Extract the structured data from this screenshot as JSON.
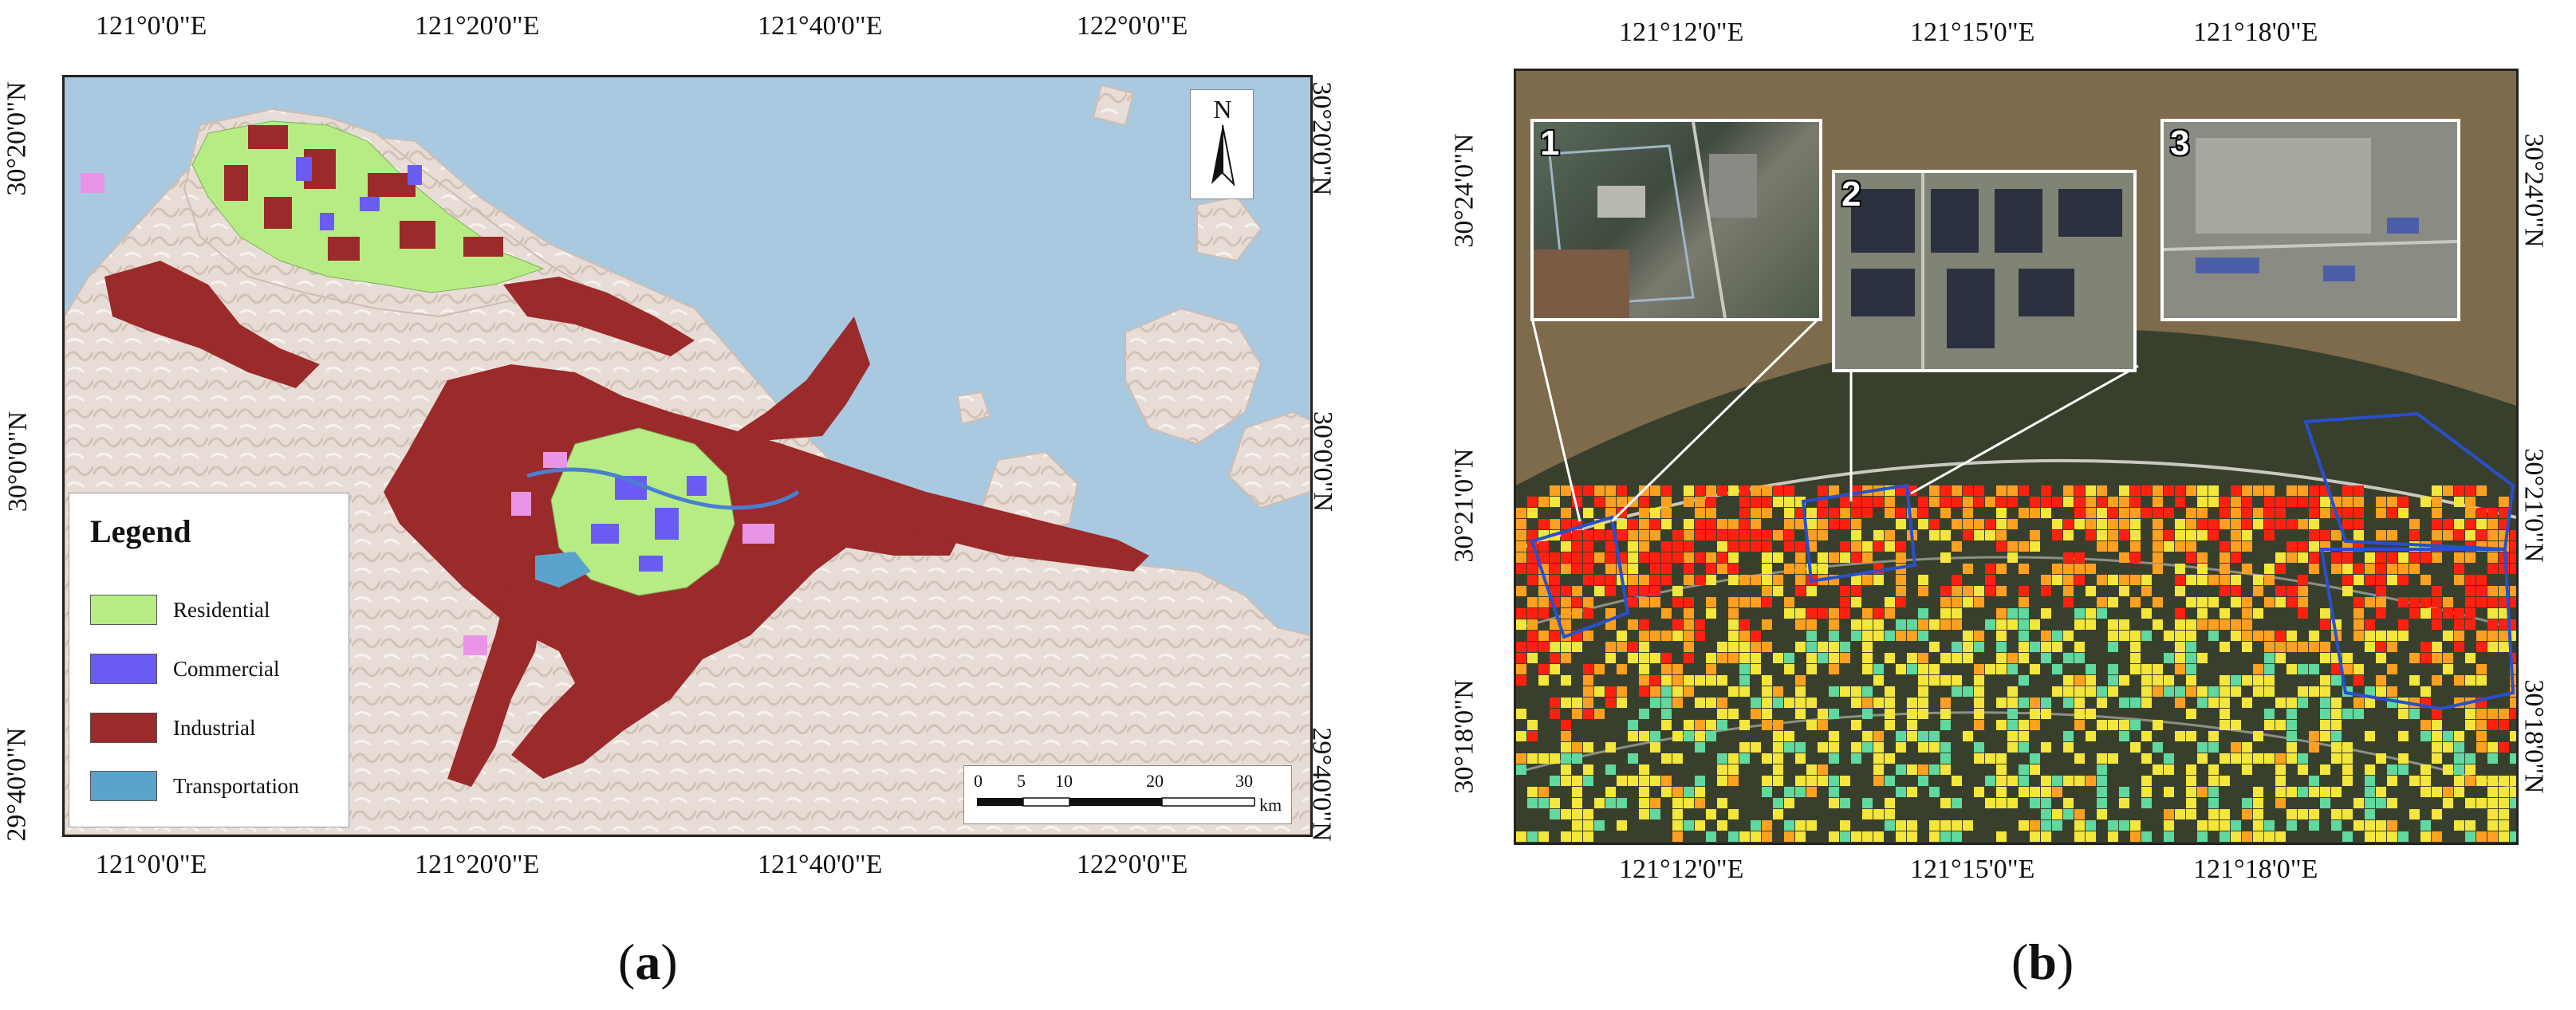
{
  "panel_a": {
    "caption": "(a)",
    "caption_letter": "a",
    "top_lon_labels": [
      "121°0'0\"E",
      "121°20'0\"E",
      "121°40'0\"E",
      "122°0'0\"E"
    ],
    "bottom_lon_labels": [
      "121°0'0\"E",
      "121°20'0\"E",
      "121°40'0\"E",
      "122°0'0\"E"
    ],
    "left_lat_labels": [
      "30°20'0\"N",
      "30°0'0\"N",
      "29°40'0\"N"
    ],
    "right_lat_labels": [
      "30°20'0\"N",
      "30°0'0\"N",
      "29°40'0\"N"
    ],
    "legend": {
      "title": "Legend",
      "items": [
        {
          "label": "Residential",
          "color": "#b7ec84"
        },
        {
          "label": "Commercial",
          "color": "#6a5cf2"
        },
        {
          "label": "Industrial",
          "color": "#9b2a2a"
        },
        {
          "label": "Transportation",
          "color": "#5aa4cc"
        }
      ]
    },
    "north_label": "N",
    "scale": {
      "ticks": [
        "0",
        "5",
        "10",
        "20",
        "30"
      ],
      "unit": "km"
    },
    "colors": {
      "sea": "#a8c8e0",
      "land": "#e7dcd5"
    }
  },
  "panel_b": {
    "caption": "(b)",
    "caption_letter": "b",
    "top_lon_labels": [
      "121°12'0\"E",
      "121°15'0\"E",
      "121°18'0\"E"
    ],
    "bottom_lon_labels": [
      "121°12'0\"E",
      "121°15'0\"E",
      "121°18'0\"E"
    ],
    "left_lat_labels": [
      "30°24'0\"N",
      "30°21'0\"N",
      "30°18'0\"N"
    ],
    "right_lat_labels": [
      "30°24'0\"N",
      "30°21'0\"N",
      "30°18'0\"N"
    ],
    "insets": [
      {
        "label": "1"
      },
      {
        "label": "2"
      },
      {
        "label": "3"
      }
    ],
    "colors": {
      "river": "#7a6a4c",
      "hot": "#ff2010",
      "warm": "#ffa020",
      "cool": "#f4e63a",
      "cold": "#60d8a0"
    }
  }
}
